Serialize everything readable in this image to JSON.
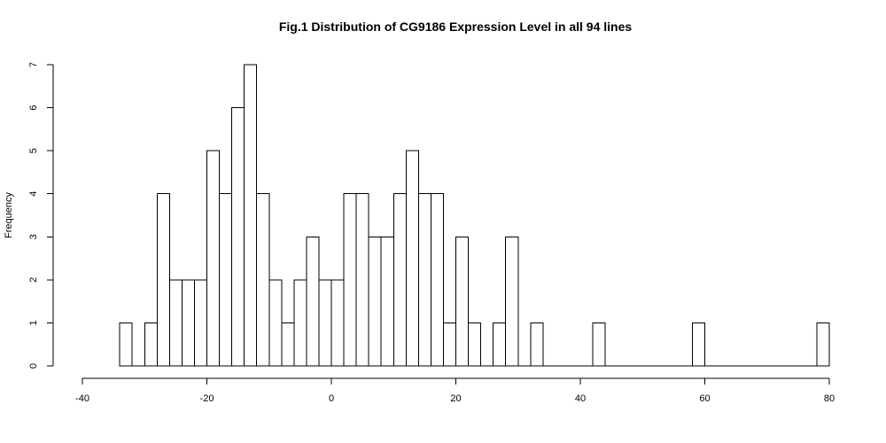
{
  "chart_data": {
    "type": "bar",
    "title": "Fig.1 Distribution of CG9186 Expression Level in all 94 lines",
    "xlabel": "",
    "ylabel": "Frequency",
    "xlim": [
      -40,
      80
    ],
    "ylim": [
      0,
      7
    ],
    "xticks": [
      -40,
      -20,
      0,
      20,
      40,
      60,
      80
    ],
    "yticks": [
      0,
      1,
      2,
      3,
      4,
      5,
      6,
      7
    ],
    "grid": false,
    "bin_width": 2,
    "bins": [
      {
        "x0": -34,
        "x1": -32,
        "count": 1
      },
      {
        "x0": -32,
        "x1": -30,
        "count": 0
      },
      {
        "x0": -30,
        "x1": -28,
        "count": 1
      },
      {
        "x0": -28,
        "x1": -26,
        "count": 4
      },
      {
        "x0": -26,
        "x1": -24,
        "count": 2
      },
      {
        "x0": -24,
        "x1": -22,
        "count": 2
      },
      {
        "x0": -22,
        "x1": -20,
        "count": 2
      },
      {
        "x0": -20,
        "x1": -18,
        "count": 5
      },
      {
        "x0": -18,
        "x1": -16,
        "count": 4
      },
      {
        "x0": -16,
        "x1": -14,
        "count": 6
      },
      {
        "x0": -14,
        "x1": -12,
        "count": 7
      },
      {
        "x0": -12,
        "x1": -10,
        "count": 4
      },
      {
        "x0": -10,
        "x1": -8,
        "count": 2
      },
      {
        "x0": -8,
        "x1": -6,
        "count": 1
      },
      {
        "x0": -6,
        "x1": -4,
        "count": 2
      },
      {
        "x0": -4,
        "x1": -2,
        "count": 3
      },
      {
        "x0": -2,
        "x1": 0,
        "count": 2
      },
      {
        "x0": 0,
        "x1": 2,
        "count": 2
      },
      {
        "x0": 2,
        "x1": 4,
        "count": 4
      },
      {
        "x0": 4,
        "x1": 6,
        "count": 4
      },
      {
        "x0": 6,
        "x1": 8,
        "count": 3
      },
      {
        "x0": 8,
        "x1": 10,
        "count": 3
      },
      {
        "x0": 10,
        "x1": 12,
        "count": 4
      },
      {
        "x0": 12,
        "x1": 14,
        "count": 5
      },
      {
        "x0": 14,
        "x1": 16,
        "count": 4
      },
      {
        "x0": 16,
        "x1": 18,
        "count": 4
      },
      {
        "x0": 18,
        "x1": 20,
        "count": 1
      },
      {
        "x0": 20,
        "x1": 22,
        "count": 3
      },
      {
        "x0": 22,
        "x1": 24,
        "count": 1
      },
      {
        "x0": 24,
        "x1": 26,
        "count": 0
      },
      {
        "x0": 26,
        "x1": 28,
        "count": 1
      },
      {
        "x0": 28,
        "x1": 30,
        "count": 3
      },
      {
        "x0": 30,
        "x1": 32,
        "count": 0
      },
      {
        "x0": 32,
        "x1": 34,
        "count": 1
      },
      {
        "x0": 34,
        "x1": 36,
        "count": 0
      },
      {
        "x0": 36,
        "x1": 38,
        "count": 0
      },
      {
        "x0": 38,
        "x1": 40,
        "count": 0
      },
      {
        "x0": 40,
        "x1": 42,
        "count": 0
      },
      {
        "x0": 42,
        "x1": 44,
        "count": 1
      },
      {
        "x0": 44,
        "x1": 46,
        "count": 0
      },
      {
        "x0": 46,
        "x1": 48,
        "count": 0
      },
      {
        "x0": 48,
        "x1": 50,
        "count": 0
      },
      {
        "x0": 50,
        "x1": 52,
        "count": 0
      },
      {
        "x0": 52,
        "x1": 54,
        "count": 0
      },
      {
        "x0": 54,
        "x1": 56,
        "count": 0
      },
      {
        "x0": 56,
        "x1": 58,
        "count": 0
      },
      {
        "x0": 58,
        "x1": 60,
        "count": 1
      },
      {
        "x0": 60,
        "x1": 62,
        "count": 0
      },
      {
        "x0": 62,
        "x1": 64,
        "count": 0
      },
      {
        "x0": 64,
        "x1": 66,
        "count": 0
      },
      {
        "x0": 66,
        "x1": 68,
        "count": 0
      },
      {
        "x0": 68,
        "x1": 70,
        "count": 0
      },
      {
        "x0": 70,
        "x1": 72,
        "count": 0
      },
      {
        "x0": 72,
        "x1": 74,
        "count": 0
      },
      {
        "x0": 74,
        "x1": 76,
        "count": 0
      },
      {
        "x0": 76,
        "x1": 78,
        "count": 0
      },
      {
        "x0": 78,
        "x1": 80,
        "count": 1
      }
    ]
  }
}
